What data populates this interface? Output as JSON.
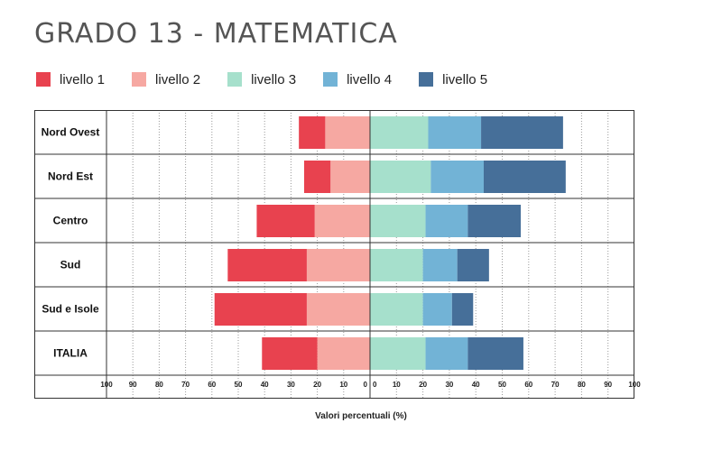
{
  "title": "GRADO 13 - MATEMATICA",
  "legend": [
    {
      "label": "livello 1",
      "color": "#e8424f"
    },
    {
      "label": "livello 2",
      "color": "#f6a8a2"
    },
    {
      "label": "livello 3",
      "color": "#a6e0cc"
    },
    {
      "label": "livello 4",
      "color": "#72b3d6"
    },
    {
      "label": "livello 5",
      "color": "#466f99"
    }
  ],
  "chart_data": {
    "type": "bar",
    "orientation": "horizontal-diverging",
    "categories": [
      "Nord Ovest",
      "Nord Est",
      "Centro",
      "Sud",
      "Sud e Isole",
      "ITALIA"
    ],
    "series": [
      {
        "name": "livello 1",
        "side": "left",
        "values": [
          10,
          10,
          22,
          30,
          35,
          21
        ]
      },
      {
        "name": "livello 2",
        "side": "left",
        "values": [
          17,
          15,
          21,
          24,
          24,
          20
        ]
      },
      {
        "name": "livello 3",
        "side": "right",
        "values": [
          22,
          23,
          21,
          20,
          20,
          21
        ]
      },
      {
        "name": "livello 4",
        "side": "right",
        "values": [
          20,
          20,
          16,
          13,
          11,
          16
        ]
      },
      {
        "name": "livello 5",
        "side": "right",
        "values": [
          31,
          31,
          20,
          12,
          8,
          21
        ]
      }
    ],
    "xlabel": "Valori percentuali (%)",
    "xlim": [
      -100,
      100
    ],
    "ticks_left": [
      "100",
      "90",
      "80",
      "70",
      "60",
      "50",
      "40",
      "30",
      "20",
      "10",
      "0"
    ],
    "ticks_right": [
      "0",
      "10",
      "20",
      "30",
      "40",
      "50",
      "60",
      "70",
      "80",
      "90",
      "100"
    ],
    "grid": true
  }
}
